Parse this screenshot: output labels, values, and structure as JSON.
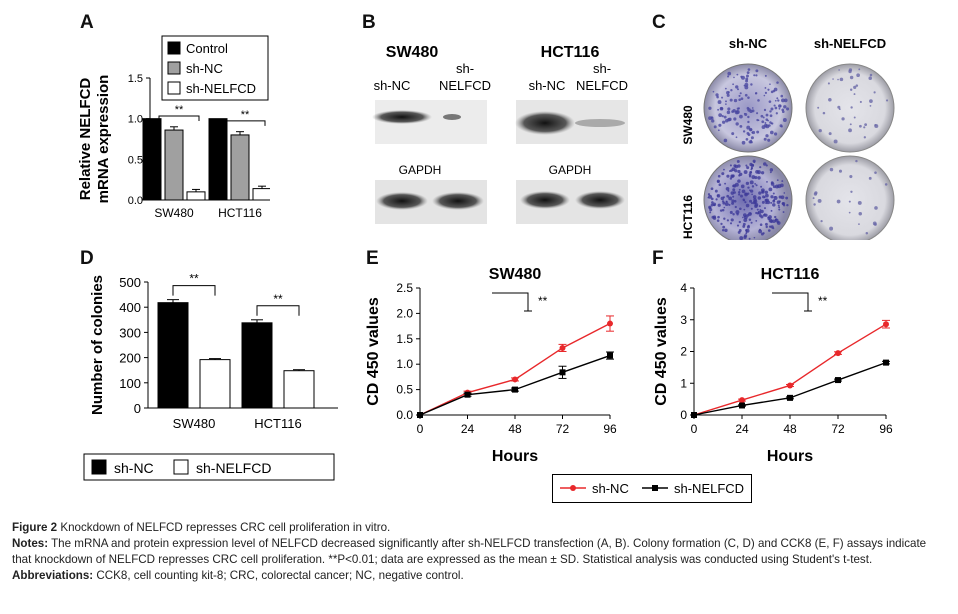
{
  "panel_letters": {
    "A": "A",
    "B": "B",
    "C": "C",
    "D": "D",
    "E": "E",
    "F": "F"
  },
  "chart_data": [
    {
      "id": "A",
      "type": "bar",
      "ylabel_line1": "Relative NELFCD",
      "ylabel_line2": "mRNA expression",
      "ylim": [
        0,
        1.5
      ],
      "yticks": [
        "0.0",
        "0.5",
        "1.0",
        "1.5"
      ],
      "categories": [
        "SW480",
        "HCT116"
      ],
      "series": [
        {
          "name": "Control",
          "color": "#000000",
          "values": [
            1.0,
            1.0
          ],
          "errors": [
            0,
            0
          ]
        },
        {
          "name": "sh-NC",
          "color": "#a0a0a0",
          "values": [
            0.86,
            0.8
          ],
          "errors": [
            0.04,
            0.04
          ]
        },
        {
          "name": "sh-NELFCD",
          "color": "#ffffff",
          "values": [
            0.1,
            0.14
          ],
          "errors": [
            0.03,
            0.03
          ]
        }
      ],
      "significance": "**",
      "legend_position": "top-right"
    },
    {
      "id": "D",
      "type": "bar",
      "ylabel": "Number of colonies",
      "ylim": [
        0,
        500
      ],
      "yticks": [
        "0",
        "100",
        "200",
        "300",
        "400",
        "500"
      ],
      "categories": [
        "SW480",
        "HCT116"
      ],
      "series": [
        {
          "name": "sh-NC",
          "color": "#000000",
          "values": [
            418,
            338
          ],
          "errors": [
            12,
            12
          ]
        },
        {
          "name": "sh-NELFCD",
          "color": "#ffffff",
          "values": [
            192,
            148
          ],
          "errors": [
            4,
            4
          ]
        }
      ],
      "significance": "**",
      "legend_position": "bottom"
    },
    {
      "id": "E",
      "type": "line",
      "title": "SW480",
      "xlabel": "Hours",
      "ylabel": "CD 450 values",
      "x": [
        0,
        24,
        48,
        72,
        96
      ],
      "xticks": [
        "0",
        "24",
        "48",
        "72",
        "96"
      ],
      "ylim": [
        0,
        2.5
      ],
      "yticks": [
        "0.0",
        "0.5",
        "1.0",
        "1.5",
        "2.0",
        "2.5"
      ],
      "series": [
        {
          "name": "sh-NC",
          "color": "#e8282b",
          "marker": "circle",
          "values": [
            0.0,
            0.44,
            0.7,
            1.32,
            1.8
          ],
          "errors": [
            0,
            0.03,
            0.03,
            0.07,
            0.15
          ]
        },
        {
          "name": "sh-NELFCD",
          "color": "#000000",
          "marker": "square",
          "values": [
            0.0,
            0.4,
            0.5,
            0.84,
            1.17
          ],
          "errors": [
            0,
            0.03,
            0.03,
            0.12,
            0.07
          ]
        }
      ],
      "significance": "**"
    },
    {
      "id": "F",
      "type": "line",
      "title": "HCT116",
      "xlabel": "Hours",
      "ylabel": "CD 450 values",
      "x": [
        0,
        24,
        48,
        72,
        96
      ],
      "xticks": [
        "0",
        "24",
        "48",
        "72",
        "96"
      ],
      "ylim": [
        0,
        4
      ],
      "yticks": [
        "0",
        "1",
        "2",
        "3",
        "4"
      ],
      "series": [
        {
          "name": "sh-NC",
          "color": "#e8282b",
          "marker": "circle",
          "values": [
            0.0,
            0.47,
            0.93,
            1.95,
            2.86
          ],
          "errors": [
            0,
            0.03,
            0.03,
            0.04,
            0.12
          ]
        },
        {
          "name": "sh-NELFCD",
          "color": "#000000",
          "marker": "square",
          "values": [
            0.0,
            0.3,
            0.54,
            1.1,
            1.65
          ],
          "errors": [
            0,
            0.02,
            0.03,
            0.03,
            0.04
          ]
        }
      ],
      "significance": "**"
    }
  ],
  "blot": {
    "sw480_title": "SW480",
    "hct116_title": "HCT116",
    "lane1": "sh-NC",
    "lane2_line1": "sh-",
    "lane2_line2": "NELFCD",
    "gapdh": "GAPDH"
  },
  "colony": {
    "col1": "sh-NC",
    "col2": "sh-NELFCD",
    "row1": "SW480",
    "row2": "HCT116"
  },
  "shared_legend": {
    "items": [
      "sh-NC",
      "sh-NELFCD"
    ]
  },
  "caption": {
    "figure_label": "Figure 2",
    "figure_title": "Knockdown of NELFCD represses CRC cell proliferation in vitro.",
    "notes_label": "Notes:",
    "notes_text": "The mRNA and protein expression level of NELFCD decreased significantly after sh-NELFCD transfection (A, B). Colony formation (C, D) and CCK8 (E, F) assays indicate that knockdown of NELFCD represses CRC cell proliferation. **P<0.01; data are expressed as the mean ± SD. Statistical analysis was conducted using Student's t-test.",
    "abbrev_label": "Abbreviations:",
    "abbrev_text": "CCK8, cell counting kit-8; CRC, colorectal cancer; NC, negative control."
  }
}
